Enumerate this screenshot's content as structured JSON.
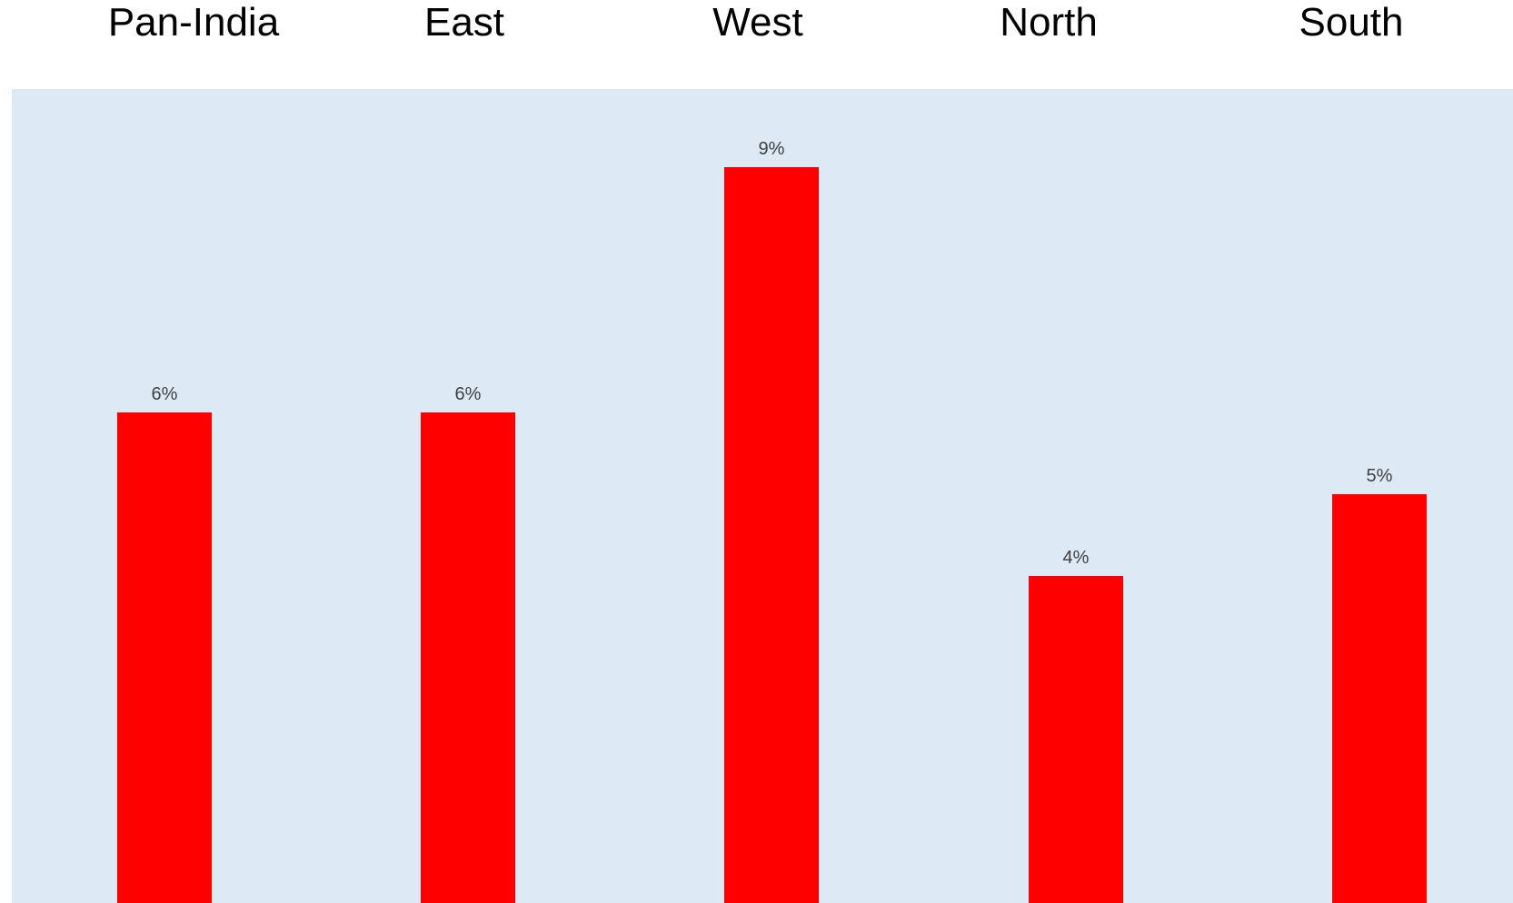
{
  "chart_data": {
    "type": "bar",
    "categories": [
      "Pan-India",
      "East",
      "West",
      "North",
      "South"
    ],
    "values": [
      6,
      6,
      9,
      4,
      5
    ],
    "data_labels": [
      "6%",
      "6%",
      "9%",
      "4%",
      "5%"
    ],
    "title": "",
    "xlabel": "",
    "ylabel": "",
    "ylim": [
      0,
      10
    ],
    "grid": false,
    "legend": "none",
    "category_labels_position": "top",
    "colors": {
      "bar": "#ff0000",
      "plot_background": "#dde9f4",
      "data_label": "#404040",
      "header_text": "#000000"
    }
  }
}
